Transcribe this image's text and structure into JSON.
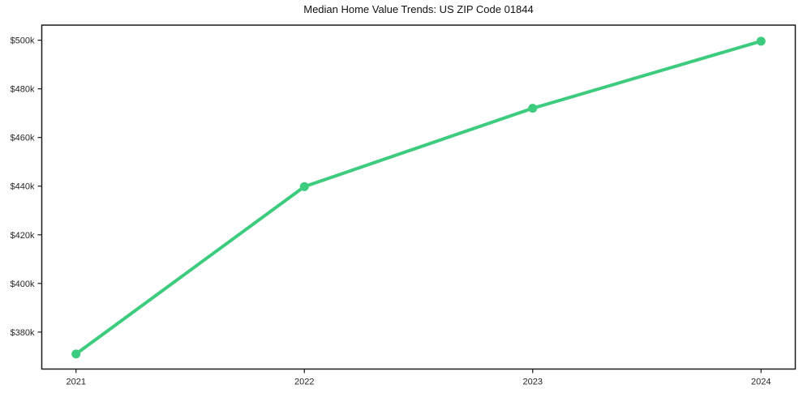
{
  "chart_data": {
    "type": "line",
    "title": "Median Home Value Trends: US ZIP Code 01844",
    "x": [
      2021,
      2022,
      2023,
      2024
    ],
    "categories": [
      "2021",
      "2022",
      "2023",
      "2024"
    ],
    "series": [
      {
        "name": "Median Home Value",
        "values": [
          371000,
          439800,
          472000,
          499600
        ],
        "color": "#3dcc7e",
        "marker": "circle"
      }
    ],
    "xlabel": "",
    "ylabel": "",
    "y_ticks": [
      380000,
      400000,
      420000,
      440000,
      460000,
      480000,
      500000
    ],
    "y_tick_labels": [
      "$380k",
      "$400k",
      "$420k",
      "$440k",
      "$460k",
      "$480k",
      "$500k"
    ],
    "xlim": [
      2020.85,
      2024.15
    ],
    "ylim": [
      364800,
      506200
    ],
    "grid": false,
    "legend": false,
    "line_width": 4,
    "marker_size": 5.5,
    "axis_color": "#1a1a1a",
    "tick_label_color": "#262626",
    "background_color": "#ffffff"
  }
}
